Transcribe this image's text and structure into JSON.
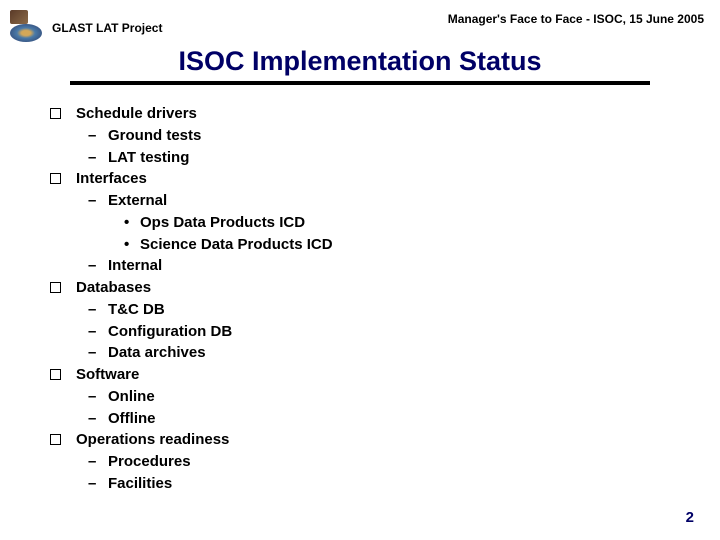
{
  "header": {
    "project": "GLAST LAT Project",
    "meeting": "Manager's Face to Face - ISOC, 15 June 2005"
  },
  "title": "ISOC Implementation Status",
  "colors": {
    "title_color": "#000066",
    "rule_color": "#000000",
    "text_color": "#000000",
    "background": "#ffffff"
  },
  "typography": {
    "title_fontsize": 27,
    "header_fontsize": 12,
    "body_fontsize": 15,
    "font_family": "Arial"
  },
  "outline": [
    {
      "level": 1,
      "text": "Schedule drivers"
    },
    {
      "level": 2,
      "text": "Ground tests"
    },
    {
      "level": 2,
      "text": "LAT testing"
    },
    {
      "level": 1,
      "text": "Interfaces"
    },
    {
      "level": 2,
      "text": "External"
    },
    {
      "level": 3,
      "text": "Ops Data Products ICD"
    },
    {
      "level": 3,
      "text": "Science Data Products ICD"
    },
    {
      "level": 2,
      "text": "Internal"
    },
    {
      "level": 1,
      "text": "Databases"
    },
    {
      "level": 2,
      "text": "T&C DB"
    },
    {
      "level": 2,
      "text": "Configuration DB"
    },
    {
      "level": 2,
      "text": "Data archives"
    },
    {
      "level": 1,
      "text": "Software"
    },
    {
      "level": 2,
      "text": "Online"
    },
    {
      "level": 2,
      "text": "Offline"
    },
    {
      "level": 1,
      "text": "Operations readiness"
    },
    {
      "level": 2,
      "text": "Procedures"
    },
    {
      "level": 2,
      "text": "Facilities"
    }
  ],
  "page_number": "2"
}
